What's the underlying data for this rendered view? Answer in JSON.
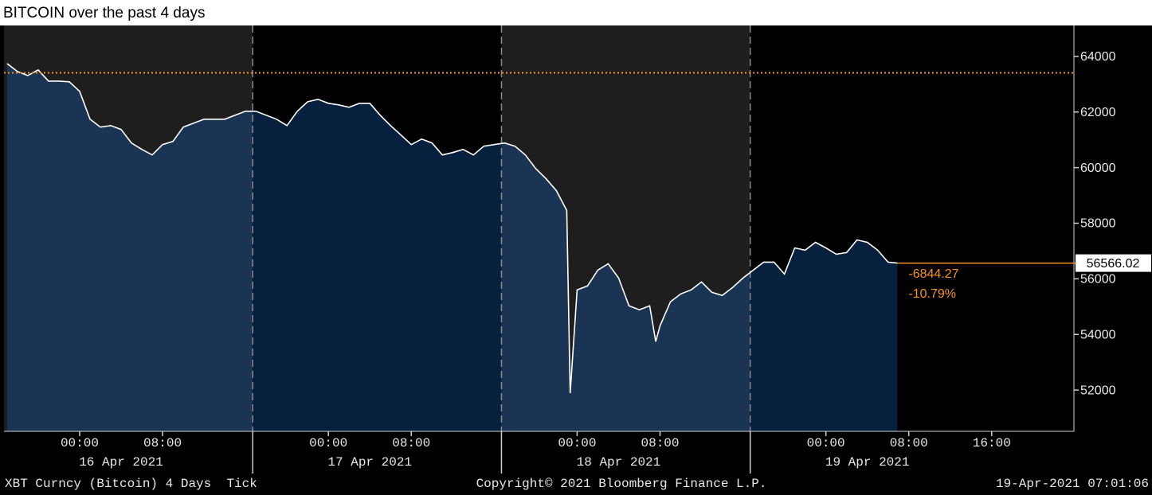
{
  "chart_data": {
    "type": "area",
    "title": "BITCOIN over the past 4 days",
    "x": [
      "2021-04-15T17:00",
      "2021-04-15T18:00",
      "2021-04-15T19:00",
      "2021-04-15T20:00",
      "2021-04-15T21:00",
      "2021-04-15T22:00",
      "2021-04-15T23:00",
      "2021-04-16T00:00",
      "2021-04-16T01:00",
      "2021-04-16T02:00",
      "2021-04-16T03:00",
      "2021-04-16T04:00",
      "2021-04-16T05:00",
      "2021-04-16T06:00",
      "2021-04-16T07:00",
      "2021-04-16T08:00",
      "2021-04-16T09:00",
      "2021-04-16T10:00",
      "2021-04-16T11:00",
      "2021-04-16T12:00",
      "2021-04-16T13:00",
      "2021-04-16T14:00",
      "2021-04-16T15:00",
      "2021-04-16T16:00",
      "2021-04-16T17:00",
      "2021-04-16T18:00",
      "2021-04-16T19:00",
      "2021-04-16T20:00",
      "2021-04-16T21:00",
      "2021-04-16T22:00",
      "2021-04-16T23:00",
      "2021-04-17T00:00",
      "2021-04-17T01:00",
      "2021-04-17T02:00",
      "2021-04-17T03:00",
      "2021-04-17T04:00",
      "2021-04-17T05:00",
      "2021-04-17T06:00",
      "2021-04-17T07:00",
      "2021-04-17T08:00",
      "2021-04-17T09:00",
      "2021-04-17T10:00",
      "2021-04-17T11:00",
      "2021-04-17T12:00",
      "2021-04-17T13:00",
      "2021-04-17T14:00",
      "2021-04-17T15:00",
      "2021-04-17T16:00",
      "2021-04-17T17:00",
      "2021-04-17T18:00",
      "2021-04-17T19:00",
      "2021-04-17T20:00",
      "2021-04-17T21:00",
      "2021-04-17T22:00",
      "2021-04-17T23:00",
      "2021-04-17T23:20",
      "2021-04-18T00:00",
      "2021-04-18T01:00",
      "2021-04-18T02:00",
      "2021-04-18T03:00",
      "2021-04-18T04:00",
      "2021-04-18T05:00",
      "2021-04-18T06:00",
      "2021-04-18T07:00",
      "2021-04-18T07:35",
      "2021-04-18T08:00",
      "2021-04-18T09:00",
      "2021-04-18T10:00",
      "2021-04-18T11:00",
      "2021-04-18T12:00",
      "2021-04-18T13:00",
      "2021-04-18T14:00",
      "2021-04-18T15:00",
      "2021-04-18T16:00",
      "2021-04-18T17:00",
      "2021-04-18T18:00",
      "2021-04-18T19:00",
      "2021-04-18T20:00",
      "2021-04-18T21:00",
      "2021-04-18T22:00",
      "2021-04-18T23:00",
      "2021-04-19T00:00",
      "2021-04-19T01:00",
      "2021-04-19T02:00",
      "2021-04-19T03:00",
      "2021-04-19T04:00",
      "2021-04-19T05:00",
      "2021-04-19T06:00",
      "2021-04-19T06:54"
    ],
    "values": [
      63743,
      63457,
      63314,
      63514,
      63114,
      63114,
      63086,
      62743,
      61743,
      61457,
      61514,
      61371,
      60886,
      60657,
      60457,
      60829,
      60943,
      61457,
      61600,
      61743,
      61743,
      61743,
      61886,
      62029,
      62029,
      61886,
      61743,
      61514,
      62029,
      62371,
      62457,
      62314,
      62257,
      62171,
      62314,
      62314,
      61886,
      61514,
      61171,
      60829,
      61029,
      60886,
      60457,
      60543,
      60657,
      60457,
      60771,
      60829,
      60886,
      60771,
      60457,
      59971,
      59600,
      59171,
      58457,
      51886,
      55600,
      55743,
      56314,
      56543,
      56029,
      55029,
      54886,
      55029,
      53743,
      54314,
      55171,
      55457,
      55600,
      55886,
      55514,
      55400,
      55686,
      56029,
      56314,
      56600,
      56600,
      56171,
      57114,
      57029,
      57314,
      57114,
      56886,
      56943,
      57400,
      57314,
      57029,
      56600,
      56566.02
    ],
    "color": "#ffffff",
    "fill_colors": [
      "#1b3453",
      "#06203d"
    ],
    "background_colors": [
      "#1e1e1e",
      "#000000"
    ],
    "xlim": [
      "2021-04-15T16:42",
      "2021-04-19T23:56"
    ],
    "ylim": [
      50514,
      65114
    ],
    "yticks": [
      52000,
      54000,
      56000,
      58000,
      60000,
      62000,
      64000
    ],
    "xticks": [
      {
        "value": "2021-04-16T00:00",
        "label": "00:00"
      },
      {
        "value": "2021-04-16T08:00",
        "label": "08:00"
      },
      {
        "value": "2021-04-17T00:00",
        "label": "00:00"
      },
      {
        "value": "2021-04-17T08:00",
        "label": "08:00"
      },
      {
        "value": "2021-04-18T00:00",
        "label": "00:00"
      },
      {
        "value": "2021-04-18T08:00",
        "label": "08:00"
      },
      {
        "value": "2021-04-19T00:00",
        "label": "00:00"
      },
      {
        "value": "2021-04-19T08:00",
        "label": "08:00"
      },
      {
        "value": "2021-04-19T16:00",
        "label": "16:00"
      }
    ],
    "date_labels": [
      "16 Apr 2021",
      "17 Apr 2021",
      "18 Apr 2021",
      "19 Apr 2021"
    ],
    "session_breaks": [
      "2021-04-16T16:42",
      "2021-04-17T16:42",
      "2021-04-18T16:42"
    ],
    "reference_value": 63410.29,
    "accent_color": "#f7941d",
    "change": -6844.27,
    "change_percent": {
      "value": -10.79,
      "label": "-10.79%"
    },
    "footer": {
      "left": "XBT Curncy (Bitcoin) 4 Days  Tick",
      "center": "Copyright© 2021 Bloomberg Finance L.P.",
      "right": "19-Apr-2021 07:01:06"
    }
  }
}
